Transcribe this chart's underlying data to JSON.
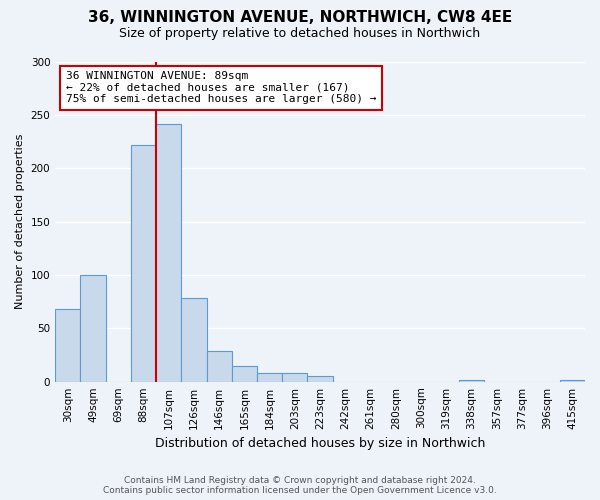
{
  "title": "36, WINNINGTON AVENUE, NORTHWICH, CW8 4EE",
  "subtitle": "Size of property relative to detached houses in Northwich",
  "xlabel": "Distribution of detached houses by size in Northwich",
  "ylabel": "Number of detached properties",
  "bar_color": "#c9d9ec",
  "bar_edge_color": "#5b9bd5",
  "categories": [
    "30sqm",
    "49sqm",
    "69sqm",
    "88sqm",
    "107sqm",
    "126sqm",
    "146sqm",
    "165sqm",
    "184sqm",
    "203sqm",
    "223sqm",
    "242sqm",
    "261sqm",
    "280sqm",
    "300sqm",
    "319sqm",
    "338sqm",
    "357sqm",
    "377sqm",
    "396sqm",
    "415sqm"
  ],
  "values": [
    68,
    100,
    0,
    222,
    241,
    78,
    29,
    15,
    8,
    8,
    5,
    0,
    0,
    0,
    0,
    0,
    2,
    0,
    0,
    0,
    2
  ],
  "ylim": [
    0,
    300
  ],
  "yticks": [
    0,
    50,
    100,
    150,
    200,
    250,
    300
  ],
  "vline_index": 3.5,
  "marker_label_line1": "36 WINNINGTON AVENUE: 89sqm",
  "marker_label_line2": "← 22% of detached houses are smaller (167)",
  "marker_label_line3": "75% of semi-detached houses are larger (580) →",
  "vline_color": "#cc0000",
  "annotation_box_edge_color": "#cc0000",
  "footer_line1": "Contains HM Land Registry data © Crown copyright and database right 2024.",
  "footer_line2": "Contains public sector information licensed under the Open Government Licence v3.0.",
  "background_color": "#eef2f9",
  "grid_color": "#ffffff",
  "title_fontsize": 11,
  "subtitle_fontsize": 9,
  "ylabel_fontsize": 8,
  "xlabel_fontsize": 9,
  "tick_fontsize": 7.5,
  "annot_fontsize": 8,
  "footer_fontsize": 6.5
}
